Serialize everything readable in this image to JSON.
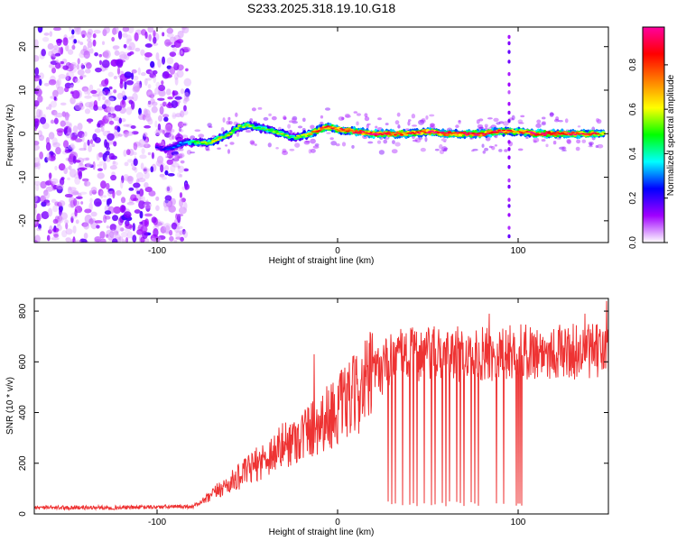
{
  "title": "S233.2025.318.19.10.G18",
  "chart_data": [
    {
      "type": "heatmap",
      "panel": "spectrogram",
      "xlabel": "Height of straight line (km)",
      "ylabel": "Frequency (Hz)",
      "xlim": [
        -168,
        150
      ],
      "ylim": [
        -25,
        24.5
      ],
      "xticks": [
        -100,
        0,
        100
      ],
      "yticks": [
        -20,
        -10,
        0,
        10,
        20
      ],
      "colorbar": {
        "label": "Normalized spectral amplitude",
        "range": [
          0,
          0.97
        ],
        "ticks": [
          "0.0",
          "0.2",
          "0.4",
          "0.6",
          "0.8"
        ],
        "colors": [
          "#ffffff",
          "#a000ff",
          "#0000ff",
          "#00ffff",
          "#00ff00",
          "#ffff00",
          "#ff8000",
          "#ff0000",
          "#ff00a0"
        ]
      },
      "noise_region_x": [
        -168,
        -83
      ],
      "signal_track": {
        "x": [
          -100,
          -95,
          -90,
          -85,
          -80,
          -75,
          -70,
          -65,
          -60,
          -55,
          -50,
          -45,
          -40,
          -35,
          -30,
          -25,
          -20,
          -15,
          -10,
          -5,
          0,
          10,
          20,
          30,
          40,
          50,
          60,
          70,
          80,
          90,
          100,
          110,
          120,
          130,
          140,
          148
        ],
        "y": [
          -3,
          -3.5,
          -3,
          -2,
          -2,
          -2,
          -2,
          -1,
          0,
          1.5,
          2,
          1.5,
          1,
          0.5,
          0,
          -1,
          -0.5,
          0,
          1,
          1.5,
          1,
          0.5,
          0,
          0,
          0,
          0.5,
          0,
          0,
          0,
          0.5,
          0.5,
          0,
          0,
          0,
          0,
          0
        ],
        "amplitude": [
          0.2,
          0.25,
          0.3,
          0.35,
          0.45,
          0.55,
          0.65,
          0.6,
          0.6,
          0.55,
          0.6,
          0.55,
          0.5,
          0.55,
          0.6,
          0.45,
          0.6,
          0.75,
          0.85,
          0.9,
          0.85,
          0.9,
          0.95,
          0.9,
          0.85,
          0.9,
          0.95,
          0.9,
          0.95,
          0.9,
          0.8,
          0.95,
          0.95,
          0.9,
          0.9,
          0.7
        ]
      },
      "vertical_stripe_x": 95
    },
    {
      "type": "line",
      "panel": "snr",
      "xlabel": "Height of straight line (km)",
      "ylabel": "SNR (10 * v/v)",
      "xlim": [
        -168,
        150
      ],
      "ylim": [
        0,
        850
      ],
      "xticks": [
        -100,
        0,
        100
      ],
      "yticks": [
        0,
        200,
        400,
        600,
        800
      ],
      "color": "#ee3333",
      "envelope": {
        "x": [
          -168,
          -120,
          -80,
          -72,
          -65,
          -60,
          -50,
          -40,
          -30,
          -20,
          -10,
          0,
          10,
          20,
          30,
          40,
          60,
          80,
          100,
          120,
          150
        ],
        "y": [
          25,
          25,
          30,
          60,
          100,
          120,
          170,
          220,
          270,
          310,
          360,
          410,
          470,
          550,
          610,
          630,
          630,
          630,
          640,
          640,
          640
        ]
      },
      "dropouts_x": [
        28,
        30,
        32,
        36,
        40,
        42,
        44,
        48,
        52,
        54,
        58,
        60,
        62,
        66,
        68,
        70,
        74,
        76,
        78,
        84,
        88,
        92,
        99,
        100,
        101,
        102
      ],
      "spikes": [
        {
          "x": -13,
          "y": 630
        },
        {
          "x": 84,
          "y": 790
        },
        {
          "x": 137,
          "y": 790
        },
        {
          "x": 149,
          "y": 840
        }
      ]
    }
  ]
}
